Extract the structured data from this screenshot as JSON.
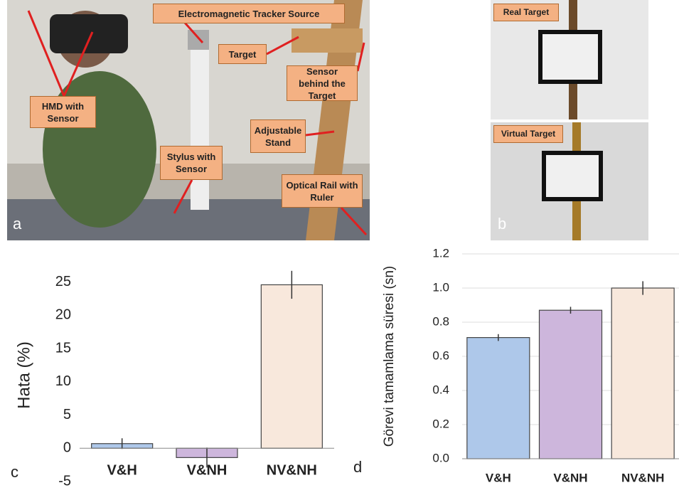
{
  "photo_a": {
    "panel_label": "a",
    "labels": [
      "Electromagnetic Tracker Source",
      "Target",
      "Sensor behind the Target",
      "HMD with Sensor",
      "Adjustable Stand",
      "Stylus with Sensor",
      "Optical Rail with Ruler"
    ]
  },
  "photo_b": {
    "panel_label": "b",
    "labels": [
      "Real Target",
      "Virtual Target"
    ]
  },
  "chart_data": [
    {
      "type": "bar",
      "panel_label": "c",
      "y_label": "Hata (%)",
      "categories": [
        "V&H",
        "V&NH",
        "NV&NH"
      ],
      "values": [
        0.7,
        -1.4,
        24.6
      ],
      "errors": [
        0.8,
        1.5,
        2.1
      ],
      "colors": [
        "#aec8ea",
        "#cdb6dc",
        "#f8e8dc"
      ],
      "ylim": [
        -5,
        27
      ],
      "yticks": [
        -5,
        0,
        5,
        10,
        15,
        20,
        25
      ],
      "grid": false
    },
    {
      "type": "bar",
      "panel_label": "d",
      "y_label": "Görevi tamamlama süresi (sn)",
      "categories": [
        "V&H",
        "V&NH",
        "NV&NH"
      ],
      "values": [
        0.71,
        0.87,
        1.0
      ],
      "errors": [
        0.02,
        0.02,
        0.04
      ],
      "colors": [
        "#aec8ea",
        "#cdb6dc",
        "#f8e8dc"
      ],
      "ylim": [
        0,
        1.2
      ],
      "yticks": [
        {
          "value": 0,
          "label": "0.0"
        },
        0.2,
        0.4,
        0.6,
        0.8,
        {
          "value": 1,
          "label": "1.0"
        },
        1.2
      ],
      "grid": true
    }
  ]
}
